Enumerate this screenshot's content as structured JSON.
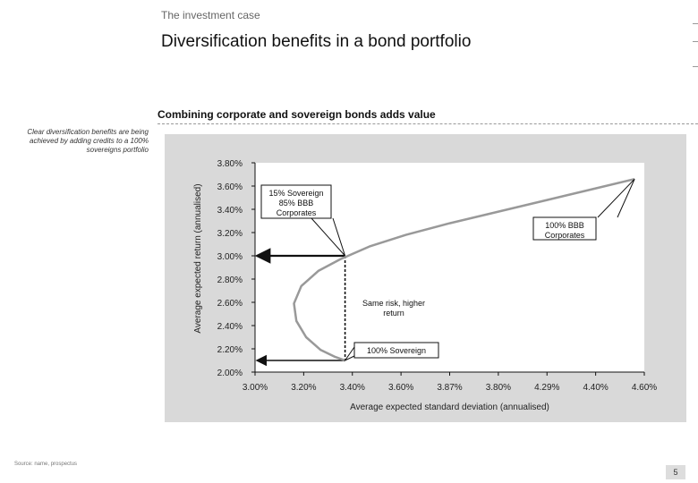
{
  "header": {
    "eyebrow": "The investment case",
    "title": "Diversification benefits in a bond portfolio"
  },
  "section_title": "Combining corporate and sovereign bonds adds value",
  "side_note": "Clear diversification benefits are being achieved by adding credits to a 100% sovereigns portfolio",
  "footer": {
    "source": "Source: name, prospectus",
    "page": "5"
  },
  "chart_data": {
    "type": "line",
    "title": "",
    "xlabel": "Average expected standard deviation (annualised)",
    "ylabel": "Average expected return (annualised)",
    "xlim": [
      3.0,
      4.6
    ],
    "ylim": [
      2.0,
      3.8
    ],
    "x_ticks": [
      "3.00%",
      "3.20%",
      "3.40%",
      "3.60%",
      "3.87%",
      "3.80%",
      "4.29%",
      "4.40%",
      "4.60%"
    ],
    "y_ticks": [
      "2.00%",
      "2.20%",
      "2.40%",
      "2.60%",
      "2.80%",
      "3.00%",
      "3.20%",
      "3.40%",
      "3.60%",
      "3.80%"
    ],
    "series": [
      {
        "points": [
          [
            3.37,
            2.1
          ],
          [
            3.33,
            2.13
          ],
          [
            3.27,
            2.19
          ],
          [
            3.21,
            2.3
          ],
          [
            3.17,
            2.44
          ],
          [
            3.16,
            2.59
          ],
          [
            3.19,
            2.74
          ],
          [
            3.26,
            2.87
          ],
          [
            3.35,
            2.97
          ],
          [
            3.47,
            3.08
          ],
          [
            3.62,
            3.18
          ],
          [
            3.8,
            3.28
          ],
          [
            4.0,
            3.38
          ],
          [
            4.2,
            3.48
          ],
          [
            4.4,
            3.58
          ],
          [
            4.56,
            3.66
          ]
        ]
      }
    ],
    "guides": {
      "same_risk_x": 3.37,
      "higher_return_y": 3.0,
      "low_return_y": 2.1
    },
    "annotations": [
      {
        "id": "mix",
        "lines": [
          "15% Sovereign",
          "85% BBB",
          "Corporates"
        ],
        "anchor": [
          3.37,
          3.0
        ]
      },
      {
        "id": "corp",
        "lines": [
          "100% BBB",
          "Corporates"
        ],
        "anchor": [
          4.56,
          3.66
        ]
      },
      {
        "id": "sov",
        "lines": [
          "100% Sovereign"
        ],
        "anchor": [
          3.37,
          2.1
        ]
      },
      {
        "id": "same",
        "lines": [
          "Same risk, higher",
          "return"
        ],
        "anchor": null
      }
    ],
    "colors": {
      "curve": "#999999",
      "guide": "#111111",
      "panel": "#d9d9d9",
      "plot": "#ffffff"
    },
    "grid": false,
    "legend": "none"
  }
}
